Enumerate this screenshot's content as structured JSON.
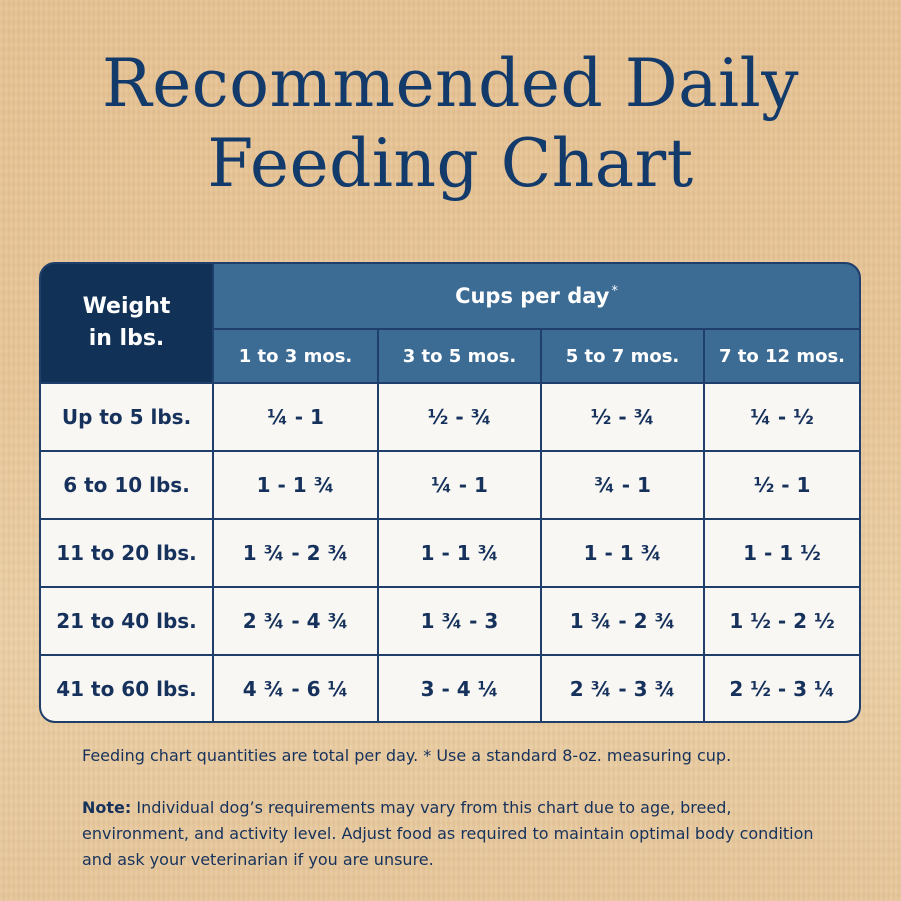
{
  "title_line1": "Recommended Daily",
  "title_line2": "Feeding Chart",
  "table": {
    "weight_header_line1": "Weight",
    "weight_header_line2": "in lbs.",
    "group_header": "Cups per day",
    "group_header_mark": "*",
    "age_columns": [
      "1 to 3 mos.",
      "3 to 5 mos.",
      "5 to 7 mos.",
      "7 to 12 mos."
    ],
    "rows": [
      {
        "weight": "Up to 5 lbs.",
        "values": [
          "¼ - 1",
          "½ - ¾",
          "½ - ¾",
          "¼ - ½"
        ]
      },
      {
        "weight": "6 to 10 lbs.",
        "values": [
          "1 - 1 ¾",
          "¼ - 1",
          "¾ - 1",
          "½ - 1"
        ]
      },
      {
        "weight": "11 to 20 lbs.",
        "values": [
          "1 ¾ - 2 ¾",
          "1 - 1 ¾",
          "1 - 1 ¾",
          "1 - 1 ½"
        ]
      },
      {
        "weight": "21 to 40 lbs.",
        "values": [
          "2 ¾ - 4 ¾",
          "1 ¾ - 3",
          "1 ¾ - 2 ¾",
          "1 ½ - 2 ½"
        ]
      },
      {
        "weight": "41 to 60 lbs.",
        "values": [
          "4 ¾ - 6 ¼",
          "3 - 4 ¼",
          "2 ¾ - 3 ¾",
          "2 ½ - 3 ¼"
        ]
      }
    ]
  },
  "footnote": "Feeding chart quantities are total per day. * Use a standard 8-oz. measuring cup.",
  "note_label": "Note:",
  "note_text": " Individual dog’s requirements may vary from this chart due to age, breed, environment, and activity level. Adjust food as required to maintain optimal body condition and ask your veterinarian if you are unsure.",
  "colors": {
    "navy": "#123156",
    "header_blue": "#3c6b94",
    "text_navy": "#16325c",
    "cell_bg": "#f8f7f3",
    "background_wood": "#e6c293"
  }
}
